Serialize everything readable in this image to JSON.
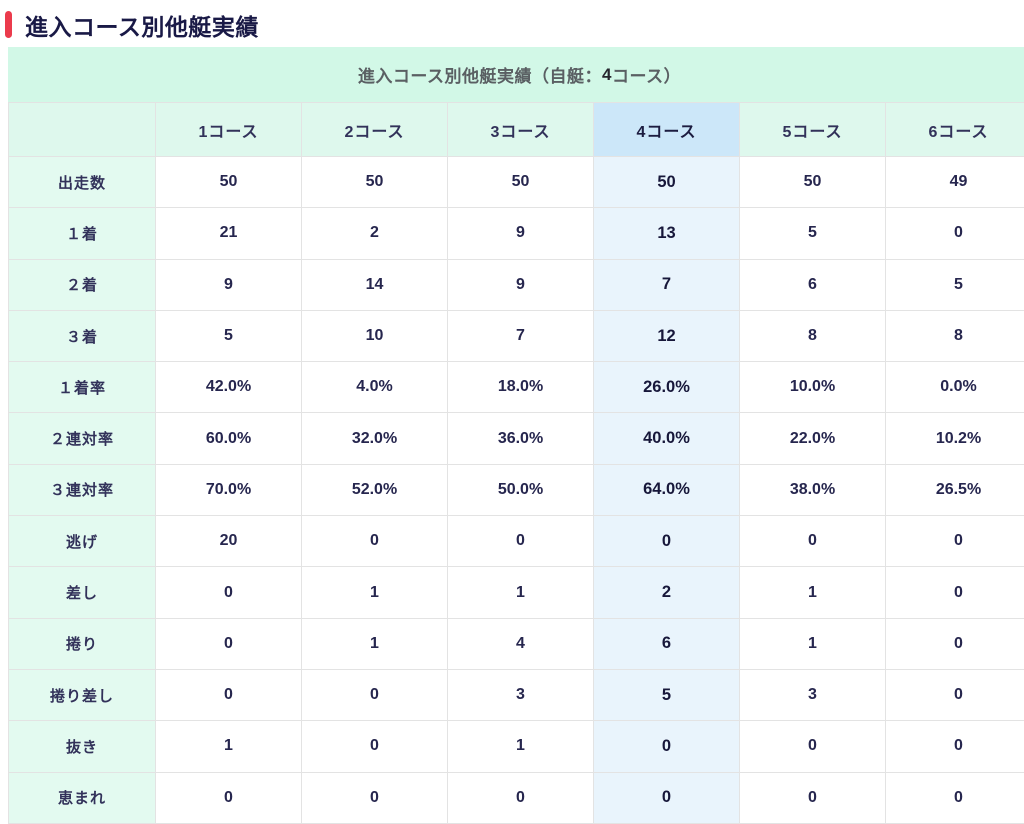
{
  "page_title": "進入コース別他艇実績",
  "table": {
    "caption_prefix": "進入コース別他艇実績（自艇：",
    "caption_bold": "4",
    "caption_suffix": "コース）",
    "columns": [
      "1コース",
      "2コース",
      "3コース",
      "4コース",
      "5コース",
      "6コース"
    ],
    "highlight_column_index": 3,
    "rows": [
      {
        "label": "出走数",
        "values": [
          "50",
          "50",
          "50",
          "50",
          "50",
          "49"
        ]
      },
      {
        "label": "１着",
        "values": [
          "21",
          "2",
          "9",
          "13",
          "5",
          "0"
        ]
      },
      {
        "label": "２着",
        "values": [
          "9",
          "14",
          "9",
          "7",
          "6",
          "5"
        ]
      },
      {
        "label": "３着",
        "values": [
          "5",
          "10",
          "7",
          "12",
          "8",
          "8"
        ]
      },
      {
        "label": "１着率",
        "values": [
          "42.0%",
          "4.0%",
          "18.0%",
          "26.0%",
          "10.0%",
          "0.0%"
        ]
      },
      {
        "label": "２連対率",
        "values": [
          "60.0%",
          "32.0%",
          "36.0%",
          "40.0%",
          "22.0%",
          "10.2%"
        ]
      },
      {
        "label": "３連対率",
        "values": [
          "70.0%",
          "52.0%",
          "50.0%",
          "64.0%",
          "38.0%",
          "26.5%"
        ]
      },
      {
        "label": "逃げ",
        "values": [
          "20",
          "0",
          "0",
          "0",
          "0",
          "0"
        ]
      },
      {
        "label": "差し",
        "values": [
          "0",
          "1",
          "1",
          "2",
          "1",
          "0"
        ]
      },
      {
        "label": "捲り",
        "values": [
          "0",
          "1",
          "4",
          "6",
          "1",
          "0"
        ]
      },
      {
        "label": "捲り差し",
        "values": [
          "0",
          "0",
          "3",
          "5",
          "3",
          "0"
        ]
      },
      {
        "label": "抜き",
        "values": [
          "1",
          "0",
          "1",
          "0",
          "0",
          "0"
        ]
      },
      {
        "label": "恵まれ",
        "values": [
          "0",
          "0",
          "0",
          "0",
          "0",
          "0"
        ]
      }
    ]
  },
  "colors": {
    "accent_red": "#eb3b4c",
    "title_text": "#191946",
    "caption_bg": "#d2f8e7",
    "caption_text": "#5a5f63",
    "header_bg": "#def8ed",
    "row_label_bg": "#e3faf0",
    "highlight_header_bg": "#cce7f9",
    "highlight_cell_bg": "#e9f4fc",
    "table_text": "#26264e",
    "border": "#e3e3e3"
  }
}
